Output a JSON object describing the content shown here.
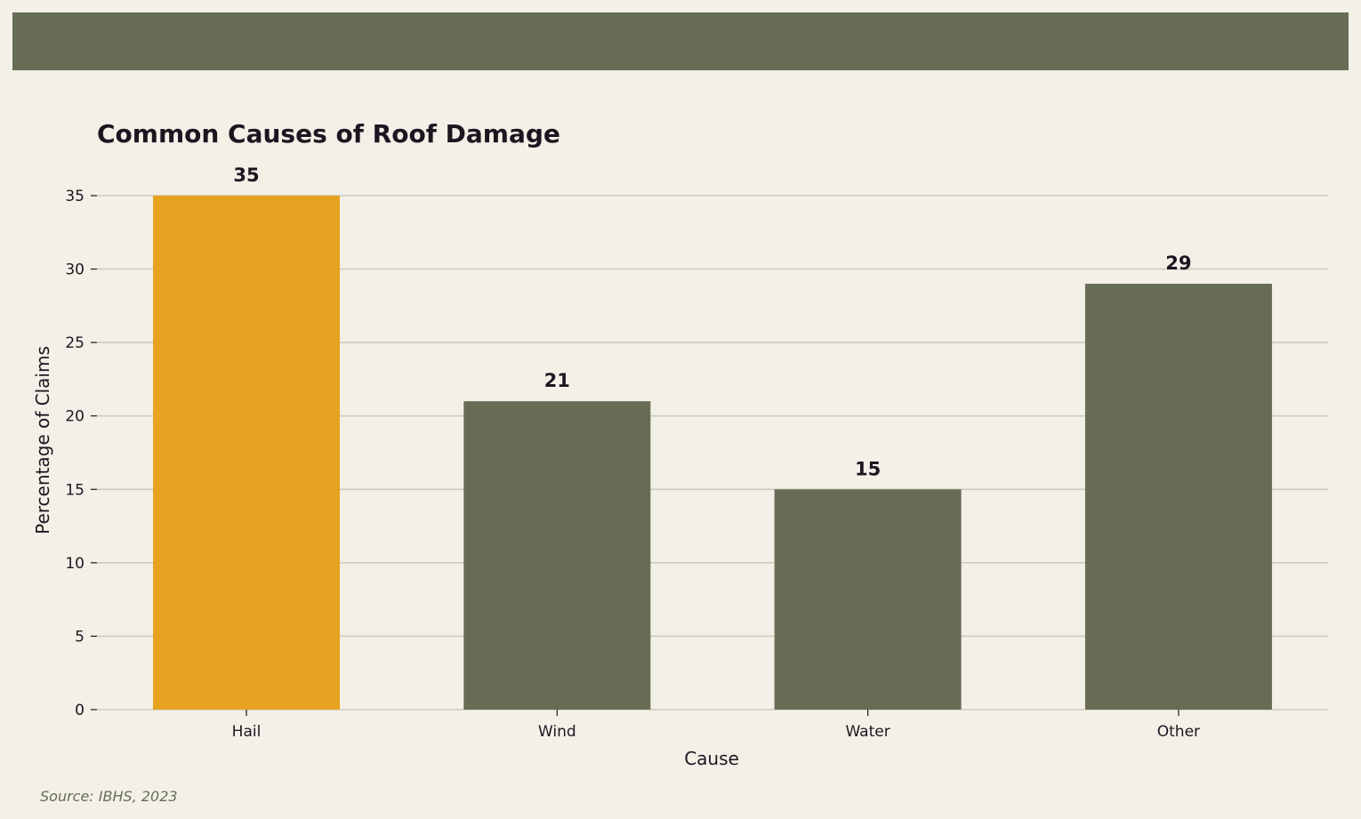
{
  "chart_data": {
    "type": "bar",
    "title": "Common Causes of Roof Damage",
    "xlabel": "Cause",
    "ylabel": "Percentage of Claims",
    "categories": [
      "Hail",
      "Wind",
      "Water",
      "Other"
    ],
    "values": [
      35,
      21,
      15,
      29
    ],
    "ylim": [
      0,
      35
    ],
    "yticks": [
      0,
      5,
      10,
      15,
      20,
      25,
      30,
      35
    ],
    "grid": true,
    "highlight_index": 0,
    "colors": {
      "highlight": "#e8a222",
      "bar": "#676c55",
      "grid": "#cfccbf",
      "text": "#1c1620",
      "background": "#f2f0e7"
    }
  },
  "source": "Source: IBHS, 2023"
}
